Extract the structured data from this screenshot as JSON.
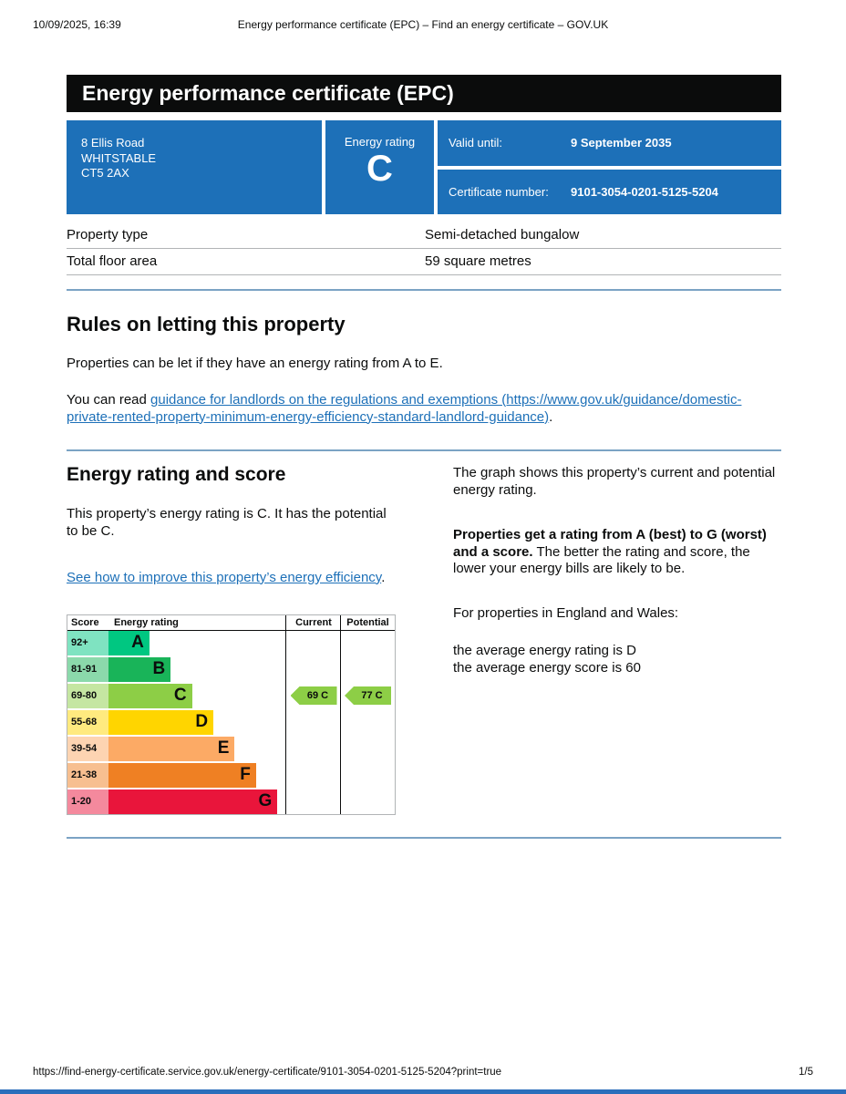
{
  "accent_colors": {
    "govuk_blue": "#1d70b8",
    "black_bar": "#0b0c0c",
    "divider": "#7ba3c4",
    "link": "#1d70b8",
    "bottom_edge": "#2a6ebb"
  },
  "print_header": {
    "datetime": "10/09/2025, 16:39",
    "title": "Energy performance certificate (EPC) – Find an energy certificate – GOV.UK"
  },
  "banner": {
    "title": "Energy performance certificate (EPC)"
  },
  "summary": {
    "address_line1": "8 Ellis Road",
    "address_line2": "WHITSTABLE",
    "address_line3": "CT5 2AX",
    "rating_label": "Energy rating",
    "rating_value": "C",
    "valid_until_label": "Valid until:",
    "valid_until_value": "9 September 2035",
    "certificate_number_label": "Certificate number:",
    "certificate_number_value": "9101-3054-0201-5125-5204"
  },
  "property_table": {
    "rows": [
      {
        "label": "Property type",
        "value": "Semi-detached bungalow"
      },
      {
        "label": "Total floor area",
        "value": "59 square metres"
      }
    ]
  },
  "rules_section": {
    "heading": "Rules on letting this property",
    "para1": "Properties can be let if they have an energy rating from A to E.",
    "para2_prefix": "You can read ",
    "link_text": "guidance for landlords on the regulations and exemptions (https://www.gov.uk/guidance/domestic-private-rented-property-minimum-energy-efficiency-standard-landlord-guidance)",
    "para2_suffix": "."
  },
  "rating_section": {
    "heading": "Energy rating and score",
    "para1": "This property’s energy rating is C. It has the potential to be C.",
    "improve_link_text": "See how to improve this property’s energy efficiency",
    "improve_link_suffix": ".",
    "right_para1": "The graph shows this property’s current and potential energy rating.",
    "right_para2_bold": "Properties get a rating from A (best) to G (worst) and a score.",
    "right_para2_rest": " The better the rating and score, the lower your energy bills are likely to be.",
    "right_para3": "For properties in England and Wales:",
    "right_para4_line1": "the average energy rating is D",
    "right_para4_line2": "the average energy score is 60"
  },
  "chart_data": {
    "type": "epc-rating-bands",
    "title": "Energy rating and score",
    "headers": {
      "score": "Score",
      "rating": "Energy rating",
      "current": "Current",
      "potential": "Potential"
    },
    "bands": [
      {
        "score": "92+",
        "letter": "A",
        "color": "#00c781",
        "light_color": "#7fe3c1",
        "width_pct": 23
      },
      {
        "score": "81-91",
        "letter": "B",
        "color": "#19b459",
        "light_color": "#8bd9ab",
        "width_pct": 35
      },
      {
        "score": "69-80",
        "letter": "C",
        "color": "#8dce46",
        "light_color": "#c5e6a2",
        "width_pct": 47
      },
      {
        "score": "55-68",
        "letter": "D",
        "color": "#ffd500",
        "light_color": "#ffea7f",
        "width_pct": 59
      },
      {
        "score": "39-54",
        "letter": "E",
        "color": "#fcaa65",
        "light_color": "#fdd4b2",
        "width_pct": 71
      },
      {
        "score": "21-38",
        "letter": "F",
        "color": "#ef8023",
        "light_color": "#f7bf90",
        "width_pct": 83
      },
      {
        "score": "1-20",
        "letter": "G",
        "color": "#e9153b",
        "light_color": "#f4899d",
        "width_pct": 95
      }
    ],
    "current": {
      "value": 69,
      "letter": "C",
      "color": "#8dce46"
    },
    "potential": {
      "value": 77,
      "letter": "C",
      "color": "#8dce46"
    }
  },
  "footer": {
    "url": "https://find-energy-certificate.service.gov.uk/energy-certificate/9101-3054-0201-5125-5204?print=true",
    "page": "1/5"
  }
}
